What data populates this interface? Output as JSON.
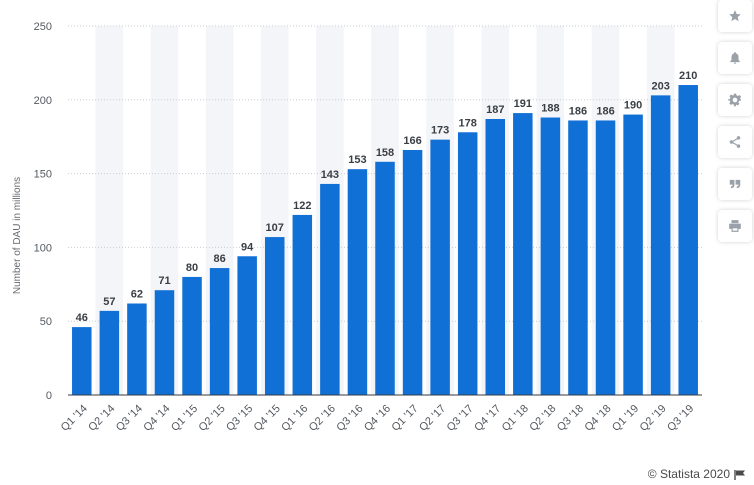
{
  "chart_data": {
    "type": "bar",
    "categories": [
      "Q1 '14",
      "Q2 '14",
      "Q3 '14",
      "Q4 '14",
      "Q1 '15",
      "Q2 '15",
      "Q3 '15",
      "Q4 '15",
      "Q1 '16",
      "Q2 '16",
      "Q3 '16",
      "Q4 '16",
      "Q1 '17",
      "Q2 '17",
      "Q3 '17",
      "Q4 '17",
      "Q1 '18",
      "Q2 '18",
      "Q3 '18",
      "Q4 '18",
      "Q1 '19",
      "Q2 '19",
      "Q3 '19"
    ],
    "values": [
      46,
      57,
      62,
      71,
      80,
      86,
      94,
      107,
      122,
      143,
      153,
      158,
      166,
      173,
      178,
      187,
      191,
      188,
      186,
      186,
      190,
      203,
      210
    ],
    "ylabel": "Number of DAU in millions",
    "ylim": [
      0,
      250
    ],
    "yticks": [
      0,
      50,
      100,
      150,
      200,
      250
    ],
    "grid": true,
    "bar_color": "#1170d6",
    "alt_band_color": "#f3f5f9"
  },
  "toolbar": {
    "buttons": [
      {
        "name": "star-icon",
        "label": "favorite"
      },
      {
        "name": "bell-icon",
        "label": "notification"
      },
      {
        "name": "gear-icon",
        "label": "settings"
      },
      {
        "name": "share-icon",
        "label": "share"
      },
      {
        "name": "quote-icon",
        "label": "citation"
      },
      {
        "name": "print-icon",
        "label": "print"
      }
    ]
  },
  "credit": {
    "text": "© Statista 2020"
  }
}
